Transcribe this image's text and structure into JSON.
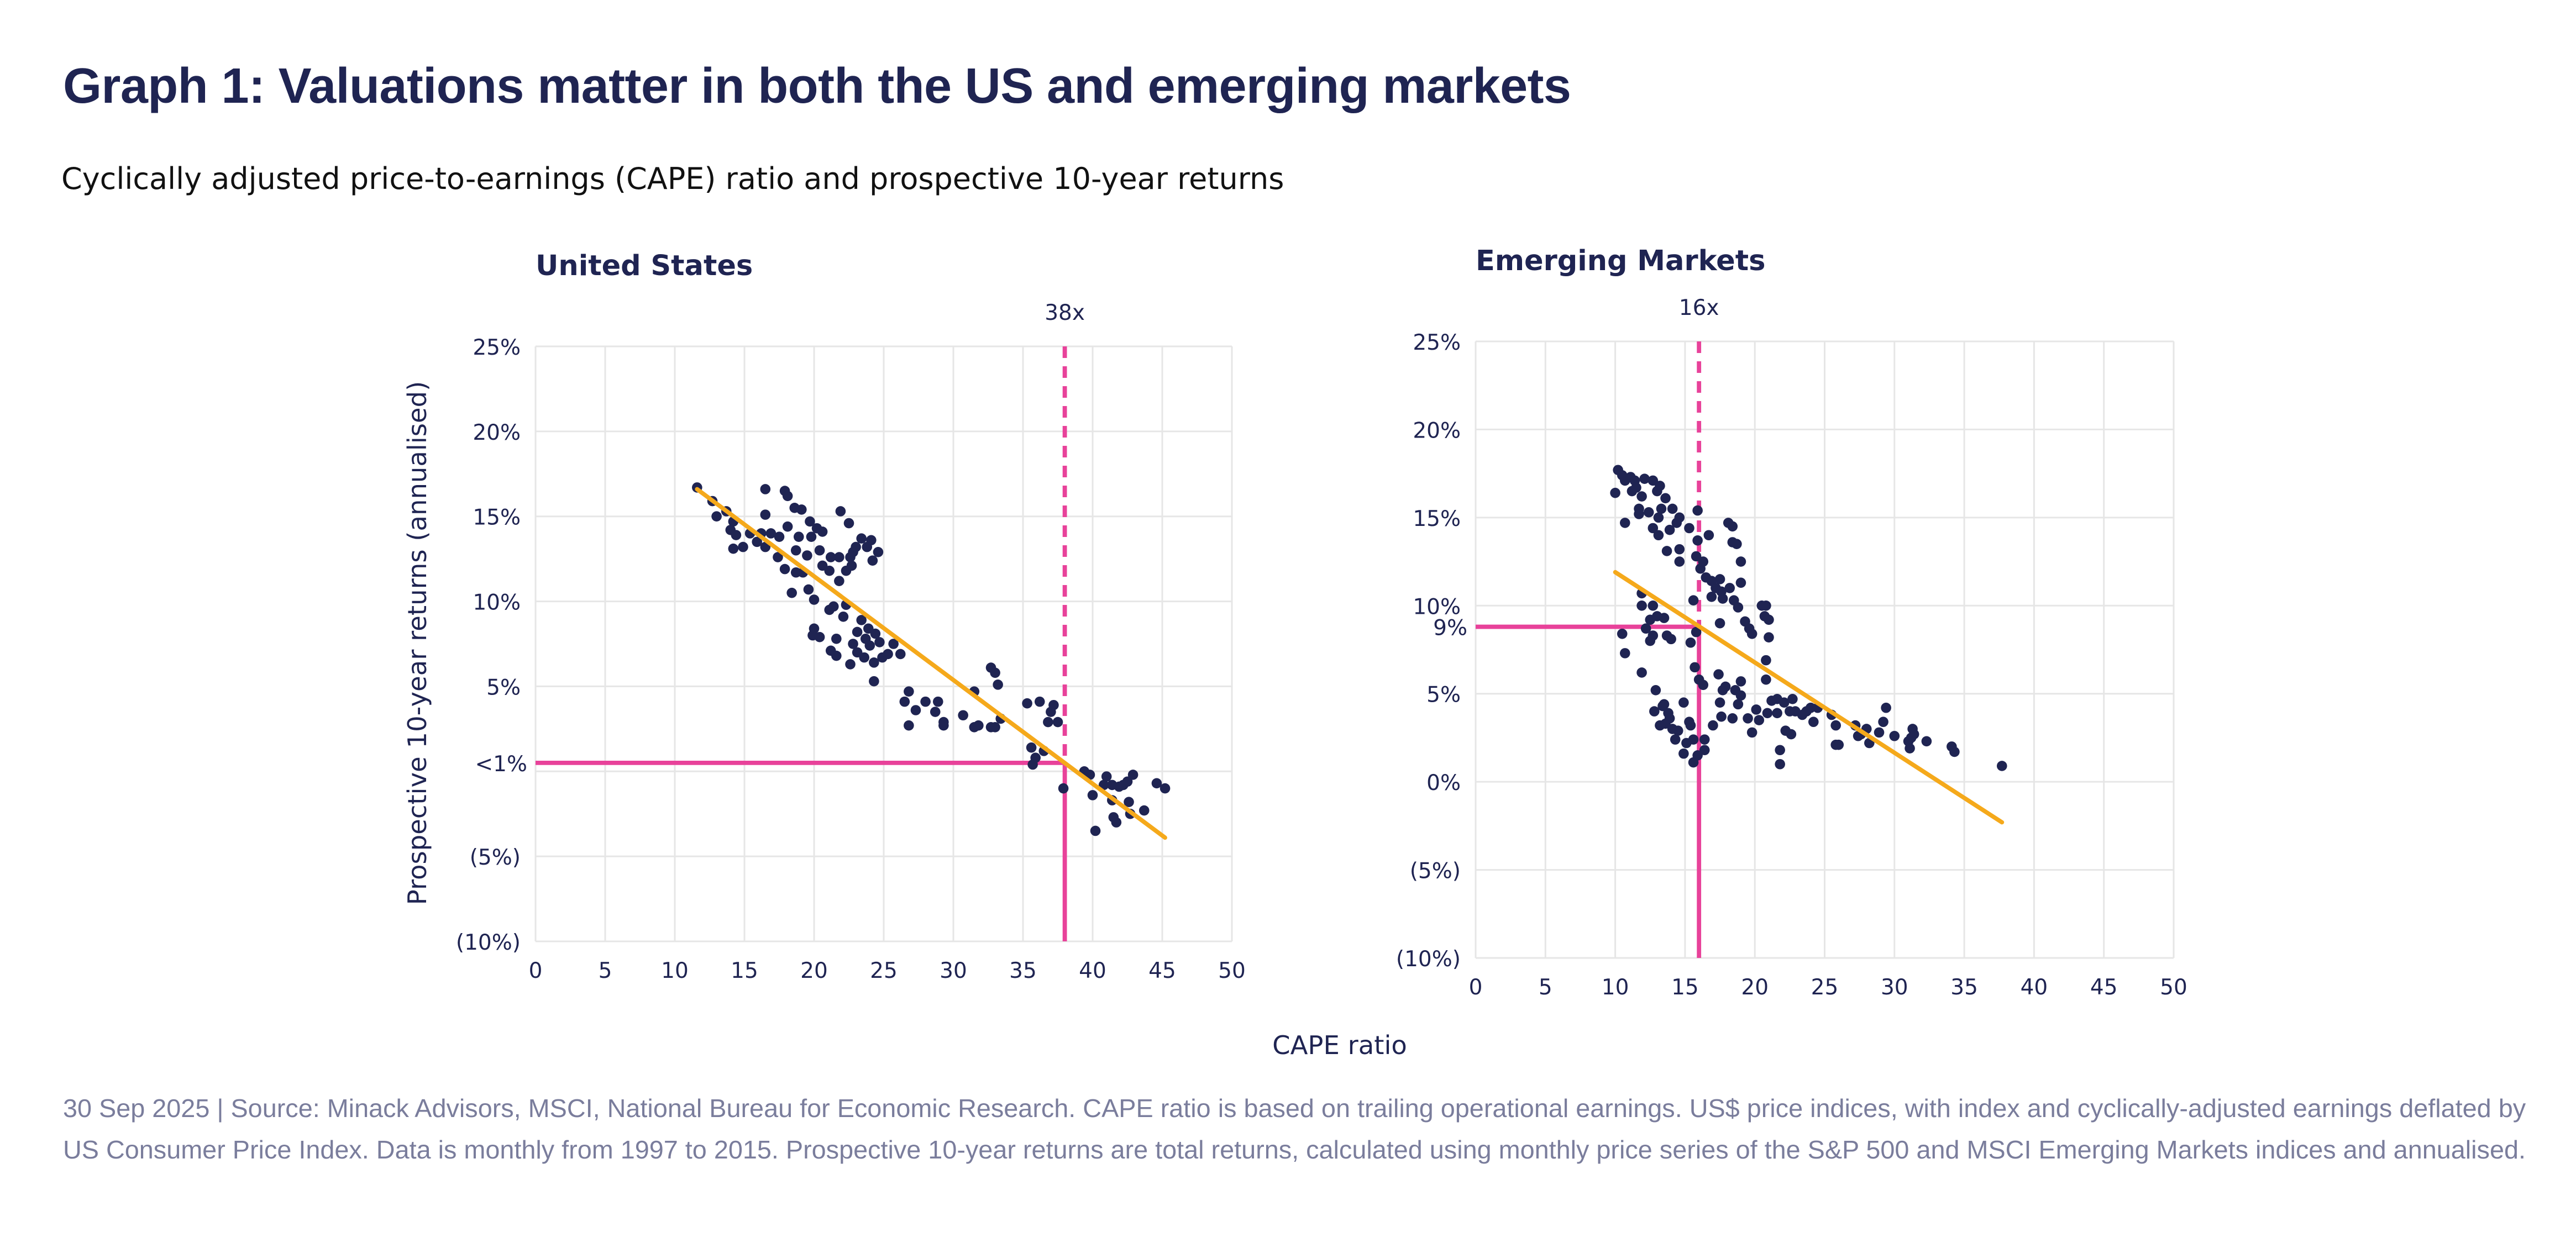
{
  "title": "Graph 1: Valuations matter in both the US and emerging markets",
  "subtitle": "Cyclically adjusted price-to-earnings (CAPE) ratio and prospective 10-year returns",
  "footer": "30 Sep 2025 | Source: Minack Advisors, MSCI, National Bureau for Economic Research. CAPE ratio is based on trailing operational earnings. US$ price indices, with index and cyclically-adjusted earnings deflated by US Consumer Price Index. Data is monthly from 1997 to 2015. Prospective 10-year returns are total returns, calculated using monthly price series of the S&P 500 and MSCI Emerging Markets indices and annualised.",
  "shared_xlabel": "CAPE ratio",
  "colors": {
    "points": "#1f2452",
    "trend": "#f5a91b",
    "reference": "#e8429a",
    "negative_tick": "#e0262c",
    "grid": "#e6e6e6"
  },
  "chart_data": [
    {
      "type": "scatter",
      "title": "United States",
      "ylabel": "Prospective 10-year returns (annualised)",
      "xlim": [
        0,
        50
      ],
      "ylim": [
        -10,
        25
      ],
      "xticks": [
        0,
        5,
        10,
        15,
        20,
        25,
        30,
        35,
        40,
        45,
        50
      ],
      "yticks": [
        25,
        20,
        15,
        10,
        5,
        -5,
        -10
      ],
      "ytick_labels": [
        "25%",
        "20%",
        "15%",
        "10%",
        "5%",
        "(5%)",
        "(10%)"
      ],
      "grid": true,
      "trendline": [
        [
          11.6,
          16.6
        ],
        [
          45.2,
          -3.9
        ]
      ],
      "reference": {
        "x": 38,
        "y": 0.5,
        "x_label": "38x",
        "y_label": "<1%"
      },
      "points": [
        [
          11.6,
          16.7
        ],
        [
          12.7,
          15.9
        ],
        [
          13.0,
          15.0
        ],
        [
          13.7,
          15.3
        ],
        [
          14.2,
          14.7
        ],
        [
          14.0,
          14.2
        ],
        [
          14.4,
          13.9
        ],
        [
          14.2,
          13.1
        ],
        [
          14.9,
          13.2
        ],
        [
          15.4,
          14.0
        ],
        [
          15.9,
          13.5
        ],
        [
          16.2,
          14.0
        ],
        [
          16.5,
          16.6
        ],
        [
          16.5,
          15.1
        ],
        [
          16.5,
          13.2
        ],
        [
          16.9,
          14.0
        ],
        [
          17.4,
          12.6
        ],
        [
          17.5,
          13.8
        ],
        [
          17.9,
          11.9
        ],
        [
          17.9,
          16.5
        ],
        [
          18.1,
          16.2
        ],
        [
          18.1,
          14.4
        ],
        [
          18.4,
          10.5
        ],
        [
          18.6,
          15.5
        ],
        [
          18.7,
          11.7
        ],
        [
          18.7,
          13.0
        ],
        [
          18.9,
          13.8
        ],
        [
          19.1,
          15.4
        ],
        [
          19.2,
          11.7
        ],
        [
          19.5,
          12.7
        ],
        [
          19.6,
          10.7
        ],
        [
          19.7,
          14.7
        ],
        [
          19.8,
          13.8
        ],
        [
          20.0,
          10.1
        ],
        [
          19.9,
          8.0
        ],
        [
          20.0,
          8.4
        ],
        [
          20.2,
          14.3
        ],
        [
          20.4,
          13.0
        ],
        [
          20.4,
          7.9
        ],
        [
          20.6,
          14.1
        ],
        [
          20.6,
          12.1
        ],
        [
          21.1,
          11.8
        ],
        [
          21.1,
          9.5
        ],
        [
          21.2,
          7.1
        ],
        [
          21.2,
          12.6
        ],
        [
          21.4,
          9.7
        ],
        [
          21.6,
          6.8
        ],
        [
          21.6,
          7.8
        ],
        [
          21.8,
          11.2
        ],
        [
          21.8,
          12.6
        ],
        [
          21.9,
          15.3
        ],
        [
          22.1,
          9.1
        ],
        [
          22.3,
          9.8
        ],
        [
          22.3,
          11.8
        ],
        [
          22.5,
          14.6
        ],
        [
          22.6,
          6.3
        ],
        [
          22.6,
          12.6
        ],
        [
          22.7,
          12.1
        ],
        [
          22.8,
          12.9
        ],
        [
          22.8,
          7.5
        ],
        [
          23.0,
          13.2
        ],
        [
          23.1,
          8.2
        ],
        [
          23.1,
          7.0
        ],
        [
          23.4,
          13.7
        ],
        [
          23.4,
          8.9
        ],
        [
          23.6,
          6.7
        ],
        [
          23.7,
          7.8
        ],
        [
          23.8,
          13.2
        ],
        [
          23.9,
          8.4
        ],
        [
          24.0,
          7.4
        ],
        [
          24.1,
          13.6
        ],
        [
          24.2,
          12.4
        ],
        [
          24.3,
          6.4
        ],
        [
          24.3,
          5.3
        ],
        [
          24.4,
          8.1
        ],
        [
          24.6,
          12.9
        ],
        [
          24.7,
          7.6
        ],
        [
          24.9,
          6.7
        ],
        [
          25.3,
          6.9
        ],
        [
          25.7,
          7.5
        ],
        [
          26.2,
          6.9
        ],
        [
          26.5,
          4.1
        ],
        [
          26.8,
          4.7
        ],
        [
          26.8,
          2.7
        ],
        [
          27.3,
          3.6
        ],
        [
          28.0,
          4.1
        ],
        [
          28.7,
          3.5
        ],
        [
          28.9,
          4.1
        ],
        [
          29.3,
          2.7
        ],
        [
          29.3,
          2.9
        ],
        [
          30.7,
          3.3
        ],
        [
          31.5,
          4.7
        ],
        [
          31.5,
          2.6
        ],
        [
          31.8,
          2.7
        ],
        [
          32.7,
          6.1
        ],
        [
          32.7,
          2.6
        ],
        [
          33.0,
          5.8
        ],
        [
          33.0,
          2.6
        ],
        [
          33.2,
          5.1
        ],
        [
          33.4,
          3.1
        ],
        [
          35.3,
          4.0
        ],
        [
          35.6,
          1.4
        ],
        [
          35.7,
          0.4
        ],
        [
          35.9,
          0.8
        ],
        [
          36.2,
          4.1
        ],
        [
          36.5,
          1.2
        ],
        [
          36.8,
          2.9
        ],
        [
          37.0,
          3.5
        ],
        [
          37.2,
          3.9
        ],
        [
          37.5,
          2.9
        ],
        [
          37.9,
          -1.0
        ],
        [
          39.4,
          0.0
        ],
        [
          39.8,
          -0.2
        ],
        [
          40.0,
          -1.4
        ],
        [
          40.2,
          -3.5
        ],
        [
          40.8,
          -0.8
        ],
        [
          41.0,
          -0.3
        ],
        [
          41.4,
          -0.8
        ],
        [
          41.4,
          -1.7
        ],
        [
          41.5,
          -2.7
        ],
        [
          41.7,
          -3.0
        ],
        [
          41.9,
          -0.9
        ],
        [
          42.2,
          -0.8
        ],
        [
          42.5,
          -0.6
        ],
        [
          42.6,
          -1.8
        ],
        [
          42.7,
          -2.5
        ],
        [
          42.9,
          -0.2
        ],
        [
          43.7,
          -2.3
        ],
        [
          44.6,
          -0.7
        ],
        [
          45.2,
          -1.0
        ]
      ]
    },
    {
      "type": "scatter",
      "title": "Emerging Markets",
      "xlim": [
        0,
        50
      ],
      "ylim": [
        -10,
        25
      ],
      "xticks": [
        0,
        5,
        10,
        15,
        20,
        25,
        30,
        35,
        40,
        45,
        50
      ],
      "yticks": [
        25,
        20,
        15,
        10,
        5,
        0,
        -5,
        -10
      ],
      "ytick_labels": [
        "25%",
        "20%",
        "15%",
        "10%",
        "5%",
        "0%",
        "(5%)",
        "(10%)"
      ],
      "grid": true,
      "trendline": [
        [
          10.0,
          11.9
        ],
        [
          37.7,
          -2.3
        ]
      ],
      "reference": {
        "x": 16,
        "y": 8.8,
        "x_label": "16x",
        "y_label": "9%"
      },
      "points": [
        [
          10.0,
          16.4
        ],
        [
          10.2,
          17.7
        ],
        [
          10.5,
          17.4
        ],
        [
          10.5,
          8.4
        ],
        [
          10.7,
          14.7
        ],
        [
          10.7,
          7.3
        ],
        [
          10.7,
          17.1
        ],
        [
          11.1,
          17.3
        ],
        [
          11.2,
          16.5
        ],
        [
          11.4,
          17.1
        ],
        [
          11.5,
          16.7
        ],
        [
          11.7,
          15.5
        ],
        [
          11.7,
          15.2
        ],
        [
          11.9,
          16.2
        ],
        [
          11.9,
          10.7
        ],
        [
          11.9,
          10.0
        ],
        [
          11.9,
          6.2
        ],
        [
          12.1,
          17.2
        ],
        [
          12.2,
          8.7
        ],
        [
          12.4,
          15.3
        ],
        [
          12.5,
          8.0
        ],
        [
          12.5,
          9.2
        ],
        [
          12.7,
          14.4
        ],
        [
          12.7,
          17.1
        ],
        [
          12.7,
          10.0
        ],
        [
          12.7,
          8.3
        ],
        [
          12.8,
          4.0
        ],
        [
          12.9,
          5.2
        ],
        [
          13.0,
          9.4
        ],
        [
          13.0,
          16.5
        ],
        [
          13.1,
          15.0
        ],
        [
          13.1,
          14.0
        ],
        [
          13.2,
          3.2
        ],
        [
          13.2,
          16.8
        ],
        [
          13.3,
          15.5
        ],
        [
          13.4,
          4.3
        ],
        [
          13.5,
          9.3
        ],
        [
          13.5,
          4.4
        ],
        [
          13.6,
          3.3
        ],
        [
          13.6,
          16.1
        ],
        [
          13.7,
          13.1
        ],
        [
          13.7,
          8.3
        ],
        [
          13.8,
          3.9
        ],
        [
          13.9,
          3.6
        ],
        [
          14.0,
          8.1
        ],
        [
          13.9,
          14.3
        ],
        [
          14.1,
          15.5
        ],
        [
          14.1,
          3.0
        ],
        [
          14.3,
          2.4
        ],
        [
          14.4,
          14.7
        ],
        [
          14.5,
          2.9
        ],
        [
          14.6,
          12.5
        ],
        [
          14.6,
          13.2
        ],
        [
          14.6,
          15.0
        ],
        [
          14.9,
          4.5
        ],
        [
          14.9,
          1.6
        ],
        [
          15.1,
          2.2
        ],
        [
          15.3,
          14.4
        ],
        [
          15.3,
          3.4
        ],
        [
          15.4,
          7.9
        ],
        [
          15.4,
          3.2
        ],
        [
          15.6,
          1.1
        ],
        [
          15.6,
          2.4
        ],
        [
          15.6,
          10.3
        ],
        [
          15.7,
          6.5
        ],
        [
          15.8,
          8.5
        ],
        [
          15.8,
          12.8
        ],
        [
          15.9,
          13.7
        ],
        [
          15.9,
          15.4
        ],
        [
          15.9,
          1.5
        ],
        [
          16.0,
          5.8
        ],
        [
          16.1,
          12.1
        ],
        [
          16.3,
          5.5
        ],
        [
          16.3,
          12.5
        ],
        [
          16.4,
          1.8
        ],
        [
          16.4,
          2.4
        ],
        [
          16.5,
          11.6
        ],
        [
          16.7,
          14.0
        ],
        [
          16.9,
          10.5
        ],
        [
          16.9,
          11.4
        ],
        [
          17.0,
          3.2
        ],
        [
          17.2,
          11.0
        ],
        [
          17.4,
          6.1
        ],
        [
          17.5,
          4.5
        ],
        [
          17.5,
          11.5
        ],
        [
          17.5,
          9.0
        ],
        [
          17.6,
          3.7
        ],
        [
          17.6,
          10.8
        ],
        [
          17.7,
          5.2
        ],
        [
          17.7,
          10.4
        ],
        [
          17.9,
          5.4
        ],
        [
          18.1,
          14.7
        ],
        [
          18.2,
          11.0
        ],
        [
          18.4,
          3.6
        ],
        [
          18.4,
          14.5
        ],
        [
          18.4,
          13.6
        ],
        [
          18.5,
          10.3
        ],
        [
          18.6,
          5.2
        ],
        [
          18.7,
          13.5
        ],
        [
          18.8,
          9.9
        ],
        [
          18.8,
          4.4
        ],
        [
          19.0,
          12.5
        ],
        [
          19.0,
          11.3
        ],
        [
          19.0,
          5.7
        ],
        [
          19.0,
          4.9
        ],
        [
          19.3,
          9.1
        ],
        [
          19.5,
          3.6
        ],
        [
          19.6,
          8.7
        ],
        [
          19.8,
          2.8
        ],
        [
          19.8,
          8.4
        ],
        [
          20.1,
          4.1
        ],
        [
          20.3,
          3.5
        ],
        [
          20.5,
          10.0
        ],
        [
          20.7,
          9.4
        ],
        [
          20.8,
          5.8
        ],
        [
          20.8,
          6.9
        ],
        [
          20.8,
          10.0
        ],
        [
          20.9,
          3.9
        ],
        [
          21.0,
          9.2
        ],
        [
          21.0,
          8.2
        ],
        [
          21.2,
          4.6
        ],
        [
          21.6,
          3.9
        ],
        [
          21.6,
          4.7
        ],
        [
          21.8,
          1.0
        ],
        [
          21.8,
          1.8
        ],
        [
          22.1,
          4.5
        ],
        [
          22.2,
          2.9
        ],
        [
          22.5,
          4.0
        ],
        [
          22.6,
          2.7
        ],
        [
          22.7,
          4.7
        ],
        [
          22.9,
          4.0
        ],
        [
          23.4,
          3.8
        ],
        [
          23.7,
          4.0
        ],
        [
          24.0,
          4.2
        ],
        [
          24.2,
          3.4
        ],
        [
          24.5,
          4.2
        ],
        [
          25.5,
          3.8
        ],
        [
          25.8,
          3.2
        ],
        [
          25.8,
          2.1
        ],
        [
          26.0,
          2.1
        ],
        [
          27.2,
          3.2
        ],
        [
          27.4,
          2.6
        ],
        [
          27.6,
          2.7
        ],
        [
          28.0,
          3.0
        ],
        [
          28.2,
          2.2
        ],
        [
          28.9,
          2.8
        ],
        [
          29.2,
          3.4
        ],
        [
          29.4,
          4.2
        ],
        [
          30.0,
          2.6
        ],
        [
          31.0,
          2.3
        ],
        [
          31.1,
          1.9
        ],
        [
          31.2,
          2.5
        ],
        [
          31.3,
          3.0
        ],
        [
          31.4,
          2.7
        ],
        [
          32.3,
          2.3
        ],
        [
          34.1,
          2.0
        ],
        [
          34.3,
          1.7
        ],
        [
          37.7,
          0.9
        ]
      ]
    }
  ]
}
